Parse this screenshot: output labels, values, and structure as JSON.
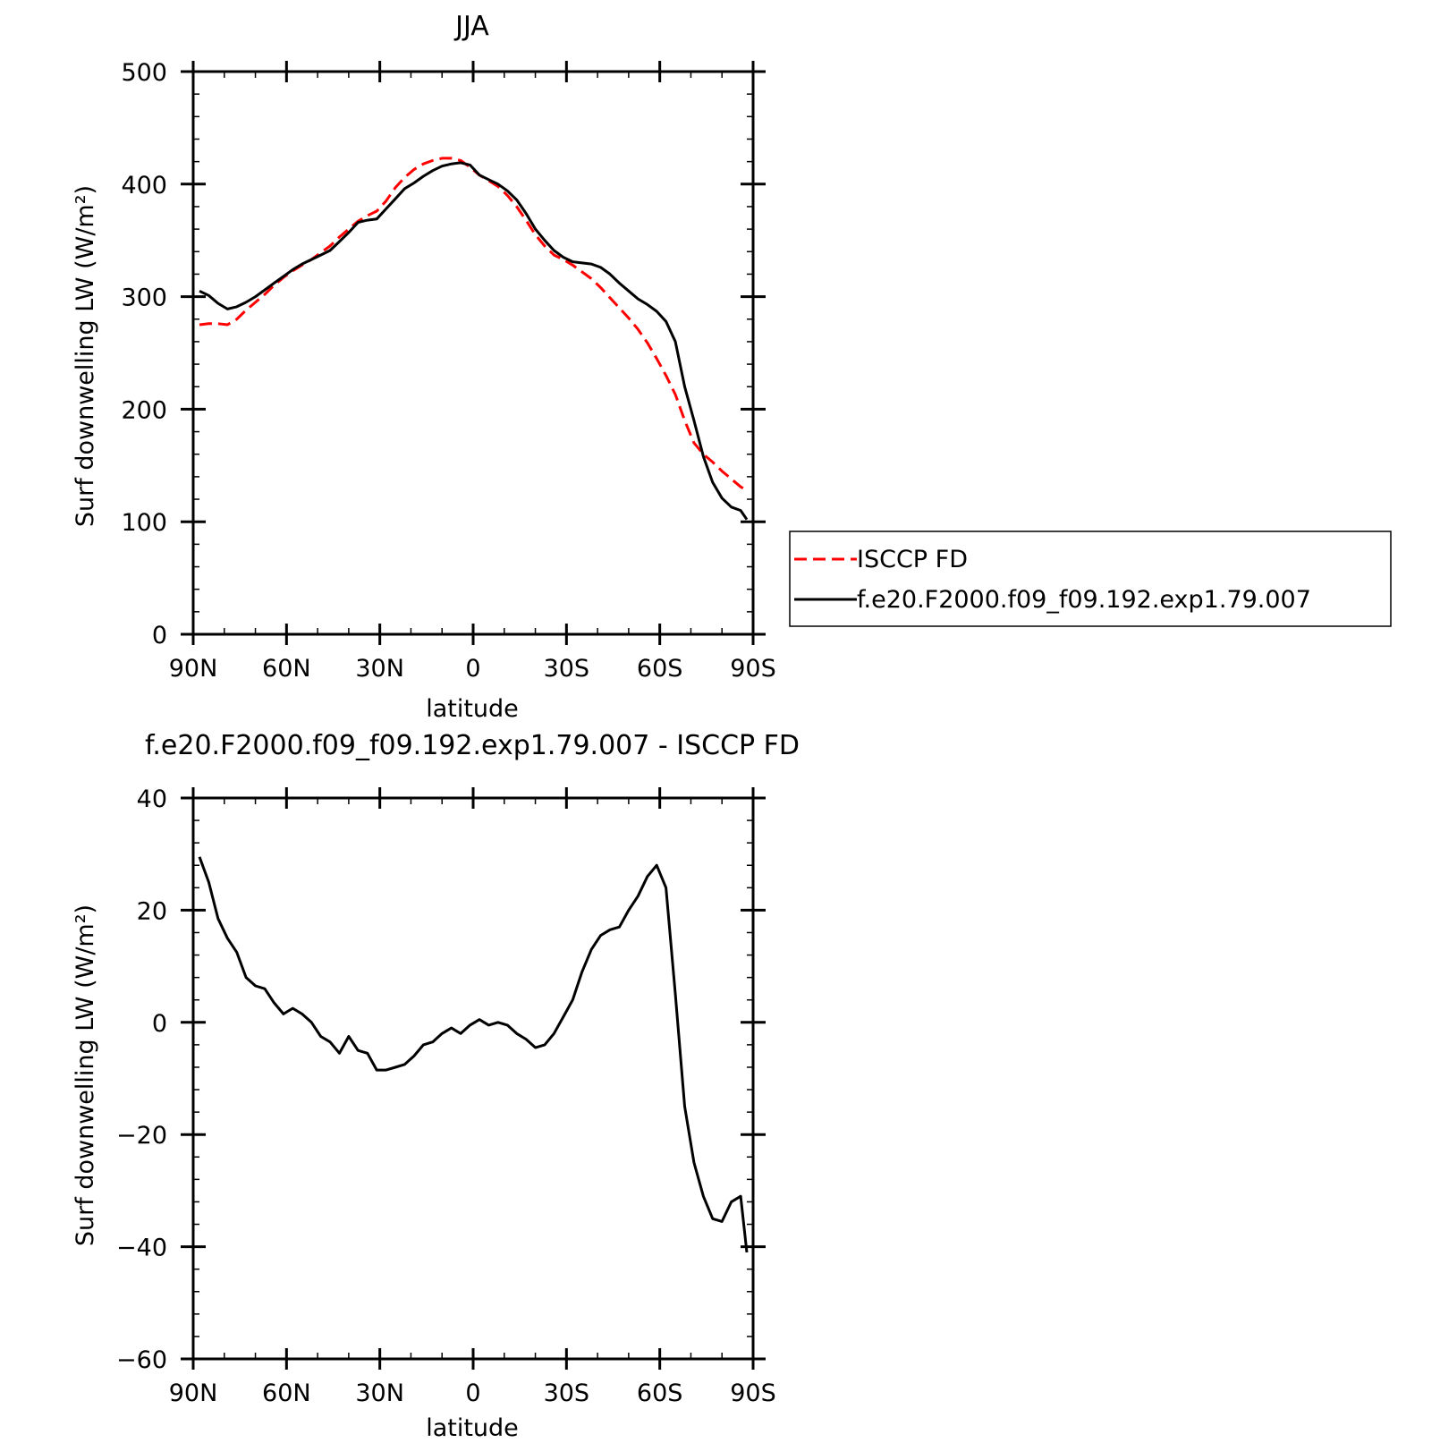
{
  "chart_data": [
    {
      "type": "line",
      "title": "JJA",
      "xlabel": "latitude",
      "ylabel": "Surf downwelling LW (W/m²)",
      "xlim": [
        90,
        -90
      ],
      "ylim": [
        0,
        500
      ],
      "xticks": [
        90,
        60,
        30,
        0,
        -30,
        -60,
        -90
      ],
      "xtick_labels": [
        "90N",
        "60N",
        "30N",
        "0",
        "30S",
        "60S",
        "90S"
      ],
      "yticks": [
        0,
        100,
        200,
        300,
        400,
        500
      ],
      "ytick_labels": [
        "0",
        "100",
        "200",
        "300",
        "400",
        "500"
      ],
      "legend_position": "right",
      "series": [
        {
          "name": "ISCCP FD",
          "color": "#ff0000",
          "dash": "dashed",
          "x": [
            88,
            85,
            82,
            79,
            76,
            73,
            70,
            67,
            64,
            61,
            58,
            55,
            52,
            49,
            46,
            43,
            40,
            37,
            34,
            31,
            28,
            25,
            22,
            19,
            16,
            13,
            10,
            7,
            4,
            1,
            -2,
            -5,
            -8,
            -11,
            -14,
            -17,
            -20,
            -23,
            -26,
            -29,
            -32,
            -35,
            -38,
            -41,
            -44,
            -47,
            -50,
            -53,
            -56,
            -59,
            -62,
            -65,
            -68,
            -71,
            -74,
            -77,
            -80,
            -83,
            -86,
            -88
          ],
          "y": [
            275,
            276,
            276,
            275,
            280,
            288,
            295,
            302,
            310,
            317,
            323,
            328,
            333,
            339,
            345,
            353,
            360,
            367,
            372,
            376,
            385,
            397,
            406,
            413,
            418,
            421,
            423,
            423,
            421,
            415,
            408,
            403,
            398,
            390,
            380,
            368,
            355,
            345,
            337,
            333,
            328,
            322,
            316,
            308,
            299,
            290,
            281,
            271,
            259,
            245,
            230,
            213,
            190,
            170,
            160,
            153,
            145,
            138,
            131,
            128
          ]
        },
        {
          "name": "f.e20.F2000.f09_f09.192.exp1.79.007",
          "color": "#000000",
          "dash": "solid",
          "x": [
            88,
            85,
            82,
            79,
            76,
            73,
            70,
            67,
            64,
            61,
            58,
            55,
            52,
            49,
            46,
            43,
            40,
            37,
            34,
            31,
            28,
            25,
            22,
            19,
            16,
            13,
            10,
            7,
            4,
            1,
            -2,
            -5,
            -8,
            -11,
            -14,
            -17,
            -20,
            -23,
            -26,
            -29,
            -32,
            -35,
            -38,
            -41,
            -44,
            -47,
            -50,
            -53,
            -56,
            -59,
            -62,
            -65,
            -68,
            -71,
            -74,
            -77,
            -80,
            -83,
            -86,
            -88
          ],
          "y": [
            305,
            301,
            294,
            289,
            291,
            295,
            300,
            306,
            312,
            318,
            324,
            329,
            333,
            337,
            341,
            349,
            357,
            366,
            368,
            369,
            378,
            387,
            396,
            401,
            407,
            412,
            416,
            418,
            419,
            417,
            408,
            404,
            400,
            394,
            386,
            374,
            360,
            350,
            341,
            335,
            331,
            330,
            329,
            326,
            320,
            312,
            305,
            298,
            293,
            287,
            278,
            260,
            220,
            190,
            158,
            135,
            121,
            113,
            110,
            102
          ]
        }
      ]
    },
    {
      "type": "line",
      "title": "f.e20.F2000.f09_f09.192.exp1.79.007 - ISCCP FD",
      "xlabel": "latitude",
      "ylabel": "Surf downwelling LW (W/m²)",
      "xlim": [
        90,
        -90
      ],
      "ylim": [
        -60,
        40
      ],
      "xticks": [
        90,
        60,
        30,
        0,
        -30,
        -60,
        -90
      ],
      "xtick_labels": [
        "90N",
        "60N",
        "30N",
        "0",
        "30S",
        "60S",
        "90S"
      ],
      "yticks": [
        -60,
        -40,
        -20,
        0,
        20,
        40
      ],
      "ytick_labels": [
        "−60",
        "−40",
        "−20",
        "0",
        "20",
        "40"
      ],
      "series": [
        {
          "color": "#000000",
          "dash": "solid",
          "x": [
            88,
            85,
            82,
            79,
            76,
            73,
            70,
            67,
            64,
            61,
            58,
            55,
            52,
            49,
            46,
            43,
            40,
            37,
            34,
            31,
            28,
            25,
            22,
            19,
            16,
            13,
            10,
            7,
            4,
            1,
            -2,
            -5,
            -8,
            -11,
            -14,
            -17,
            -20,
            -23,
            -26,
            -29,
            -32,
            -35,
            -38,
            -41,
            -44,
            -47,
            -50,
            -53,
            -56,
            -59,
            -62,
            -65,
            -68,
            -71,
            -74,
            -77,
            -80,
            -83,
            -86,
            -88
          ],
          "y": [
            29.5,
            25,
            18.5,
            15,
            12.5,
            8,
            6.5,
            6,
            3.5,
            1.5,
            2.5,
            1.5,
            0,
            -2.5,
            -3.5,
            -5.5,
            -2.5,
            -5,
            -5.5,
            -8.5,
            -8.5,
            -8,
            -7.5,
            -6,
            -4,
            -3.5,
            -2,
            -1,
            -2,
            -0.5,
            0.5,
            -0.5,
            0,
            -0.5,
            -2,
            -3,
            -4.5,
            -4,
            -2,
            1,
            4,
            9,
            13,
            15.5,
            16.5,
            17,
            20,
            22.5,
            26,
            28,
            24,
            5,
            -15,
            -25,
            -31,
            -35,
            -35.5,
            -32,
            -31,
            -41
          ]
        }
      ]
    }
  ],
  "legend": {
    "items": [
      {
        "label": "ISCCP FD",
        "color": "#ff0000",
        "dash": "dashed"
      },
      {
        "label": "f.e20.F2000.f09_f09.192.exp1.79.007",
        "color": "#000000",
        "dash": "solid"
      }
    ]
  }
}
